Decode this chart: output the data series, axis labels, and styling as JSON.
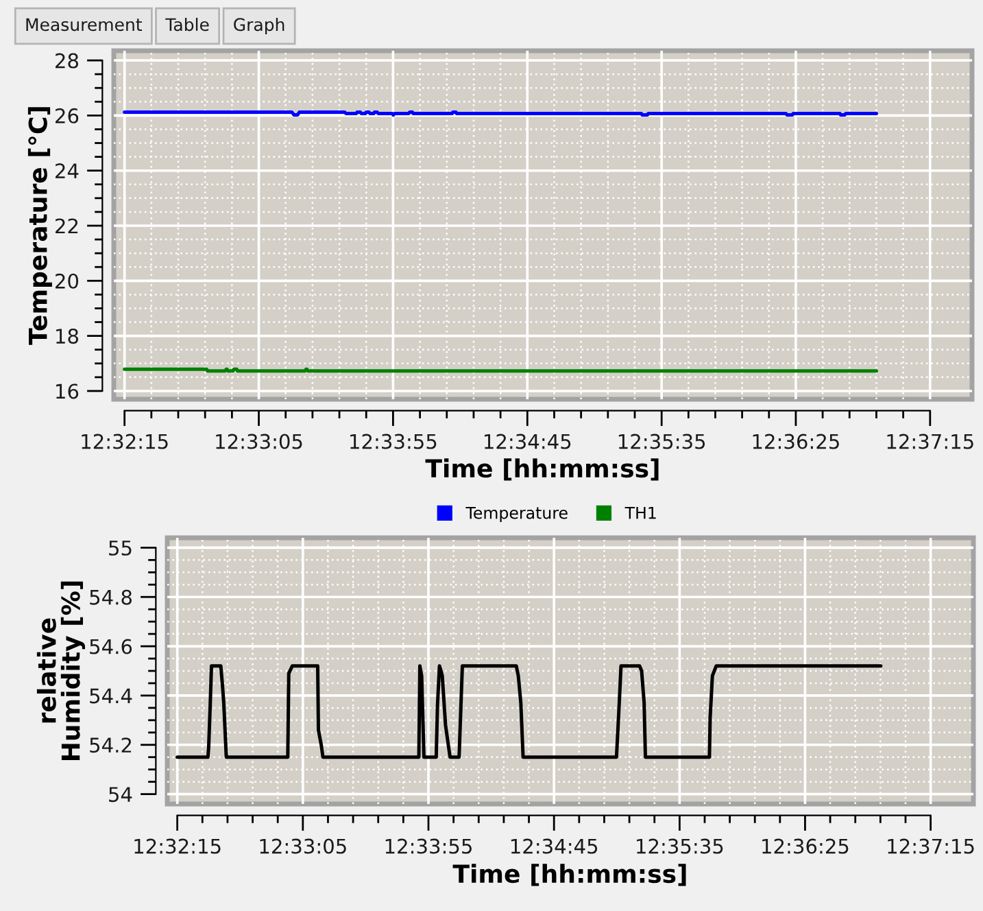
{
  "chart_data": [
    {
      "type": "line",
      "annotations": [
        "Measurement",
        "Table",
        "Graph"
      ],
      "xlabel": "Time [hh:mm:ss]",
      "ylabel": "Temperature [°C]",
      "xlim": [
        12.53639,
        12.62517
      ],
      "xticks": [
        {
          "value": 12.5375,
          "label": "12:32:15"
        },
        {
          "value": 12.55139,
          "label": "12:33:05"
        },
        {
          "value": 12.56528,
          "label": "12:33:55"
        },
        {
          "value": 12.57917,
          "label": "12:34:45"
        },
        {
          "value": 12.59306,
          "label": "12:35:35"
        },
        {
          "value": 12.60694,
          "label": "12:36:25"
        },
        {
          "value": 12.62083,
          "label": "12:37:15"
        }
      ],
      "ylim": [
        15.7,
        28.35
      ],
      "yticks": [
        16,
        18,
        20,
        22,
        24,
        26,
        28
      ],
      "grid": true,
      "legend": "bottom",
      "series": [
        {
          "name": "Temperature",
          "color": "#0000ff",
          "x": [
            12.5375,
            12.55481,
            12.55503,
            12.55539,
            12.55558,
            12.56028,
            12.56042,
            12.56147,
            12.56156,
            12.56189,
            12.562,
            12.56242,
            12.5625,
            12.56278,
            12.56289,
            12.56328,
            12.56336,
            12.56364,
            12.56375,
            12.56519,
            12.56531,
            12.56544,
            12.56689,
            12.567,
            12.56728,
            12.56736,
            12.57139,
            12.57147,
            12.57178,
            12.57186,
            12.59097,
            12.59106,
            12.59158,
            12.59167,
            12.60592,
            12.60603,
            12.60658,
            12.60667,
            12.6115,
            12.61158,
            12.612,
            12.61211,
            12.61528
          ],
          "values": [
            26.12,
            26.12,
            26.02,
            26.02,
            26.12,
            26.12,
            26.07,
            26.07,
            26.12,
            26.12,
            26.07,
            26.07,
            26.12,
            26.12,
            26.07,
            26.07,
            26.12,
            26.12,
            26.07,
            26.07,
            26.02,
            26.07,
            26.07,
            26.12,
            26.12,
            26.07,
            26.07,
            26.12,
            26.12,
            26.07,
            26.07,
            26.02,
            26.02,
            26.07,
            26.07,
            26.02,
            26.02,
            26.07,
            26.07,
            26.02,
            26.02,
            26.07,
            26.07
          ]
        },
        {
          "name": "TH1",
          "color": "#008000",
          "x": [
            12.5375,
            12.546,
            12.54608,
            12.54792,
            12.54803,
            12.54811,
            12.54819,
            12.54872,
            12.54883,
            12.54911,
            12.54919,
            12.55619,
            12.55628,
            12.55636,
            12.55647,
            12.61528
          ],
          "values": [
            16.79,
            16.79,
            16.73,
            16.73,
            16.79,
            16.79,
            16.73,
            16.73,
            16.79,
            16.79,
            16.73,
            16.73,
            16.79,
            16.79,
            16.73,
            16.73
          ]
        }
      ]
    },
    {
      "type": "line",
      "xlabel": "Time [hh:mm:ss]",
      "ylabel": "relative\nHumidity [%]",
      "xlim": [
        12.53639,
        12.62556
      ],
      "xticks": [
        {
          "value": 12.5375,
          "label": "12:32:15"
        },
        {
          "value": 12.55139,
          "label": "12:33:05"
        },
        {
          "value": 12.56528,
          "label": "12:33:55"
        },
        {
          "value": 12.57917,
          "label": "12:34:45"
        },
        {
          "value": 12.59306,
          "label": "12:35:35"
        },
        {
          "value": 12.60694,
          "label": "12:36:25"
        },
        {
          "value": 12.62083,
          "label": "12:37:15"
        }
      ],
      "ylim": [
        53.96,
        55.04
      ],
      "yticks": [
        54,
        54.2,
        54.4,
        54.6,
        54.8,
        55
      ],
      "grid": true,
      "series": [
        {
          "color": "#000000",
          "x": [
            12.5375,
            12.54089,
            12.54097,
            12.54114,
            12.54128,
            12.54231,
            12.5425,
            12.54264,
            12.54292,
            12.54972,
            12.54983,
            12.55022,
            12.55303,
            12.55311,
            12.55342,
            12.55361,
            12.56422,
            12.56433,
            12.56453,
            12.56478,
            12.56614,
            12.56628,
            12.5665,
            12.56667,
            12.56681,
            12.56717,
            12.56767,
            12.56867,
            12.56903,
            12.575,
            12.57522,
            12.5755,
            12.57575,
            12.58608,
            12.58636,
            12.58658,
            12.58864,
            12.58886,
            12.58914,
            12.58928,
            12.59636,
            12.59644,
            12.59669,
            12.59711,
            12.61531
          ],
          "values": [
            54.15,
            54.15,
            54.19,
            54.36,
            54.52,
            54.52,
            54.44,
            54.37,
            54.15,
            54.15,
            54.49,
            54.52,
            54.52,
            54.26,
            54.2,
            54.15,
            54.15,
            54.52,
            54.48,
            54.15,
            54.15,
            54.36,
            54.52,
            54.5,
            54.48,
            54.28,
            54.15,
            54.15,
            54.52,
            54.52,
            54.48,
            54.37,
            54.15,
            54.15,
            54.35,
            54.52,
            54.52,
            54.5,
            54.37,
            54.15,
            54.15,
            54.31,
            54.48,
            54.52,
            54.52
          ]
        }
      ]
    }
  ]
}
